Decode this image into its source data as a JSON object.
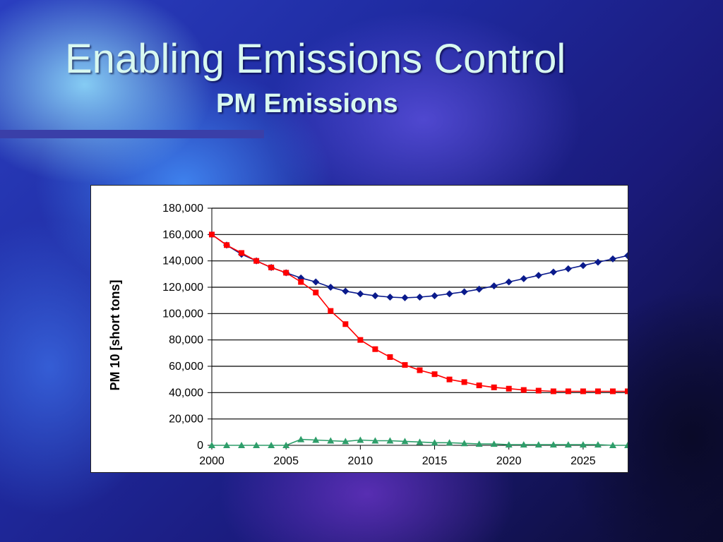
{
  "slide": {
    "title": "Enabling Emissions Control",
    "subtitle": "PM Emissions"
  },
  "colors": {
    "series_blue": "#0a1a8c",
    "series_red": "#ff0000",
    "series_green": "#2e9e6a",
    "gridline": "#000000"
  },
  "chart_data": {
    "type": "line",
    "title": "",
    "xlabel": "",
    "ylabel": "PM 10 [short tons]",
    "xlim": [
      2000,
      2028
    ],
    "ylim": [
      0,
      180000
    ],
    "x_ticks": [
      2000,
      2005,
      2010,
      2015,
      2020,
      2025
    ],
    "y_ticks": [
      0,
      20000,
      40000,
      60000,
      80000,
      100000,
      120000,
      140000,
      160000,
      180000
    ],
    "y_tick_labels": [
      "0",
      "20,000",
      "40,000",
      "60,000",
      "80,000",
      "100,000",
      "120,000",
      "140,000",
      "160,000",
      "180,000"
    ],
    "x_tick_labels": [
      "2000",
      "2005",
      "2010",
      "2015",
      "2020",
      "2025"
    ],
    "grid": "horizontal",
    "legend": "none",
    "x": [
      2000,
      2001,
      2002,
      2003,
      2004,
      2005,
      2006,
      2007,
      2008,
      2009,
      2010,
      2011,
      2012,
      2013,
      2014,
      2015,
      2016,
      2017,
      2018,
      2019,
      2020,
      2021,
      2022,
      2023,
      2024,
      2025,
      2026,
      2027,
      2028
    ],
    "series": [
      {
        "marker": "diamond",
        "color": "#0a1a8c",
        "values": [
          160000,
          152000,
          145000,
          140000,
          135000,
          131000,
          127000,
          124000,
          120000,
          117000,
          115000,
          113500,
          112500,
          112000,
          112500,
          113500,
          115000,
          116500,
          118500,
          121000,
          124000,
          126500,
          129000,
          131500,
          134000,
          136500,
          139000,
          141500,
          144000
        ]
      },
      {
        "marker": "square",
        "color": "#ff0000",
        "values": [
          160000,
          152000,
          146000,
          140000,
          135000,
          131000,
          124000,
          116000,
          102000,
          92000,
          80000,
          73000,
          67000,
          61000,
          57000,
          54000,
          50000,
          48000,
          45500,
          44000,
          43000,
          42000,
          41500,
          41000,
          41000,
          41000,
          41000,
          41000,
          41000
        ]
      },
      {
        "marker": "triangle",
        "color": "#2e9e6a",
        "values": [
          0,
          0,
          0,
          0,
          0,
          0,
          4500,
          4000,
          3500,
          3000,
          4000,
          3500,
          3500,
          3000,
          2500,
          2000,
          2000,
          1500,
          1000,
          1000,
          500,
          500,
          500,
          500,
          500,
          500,
          500,
          0,
          0
        ]
      }
    ]
  }
}
